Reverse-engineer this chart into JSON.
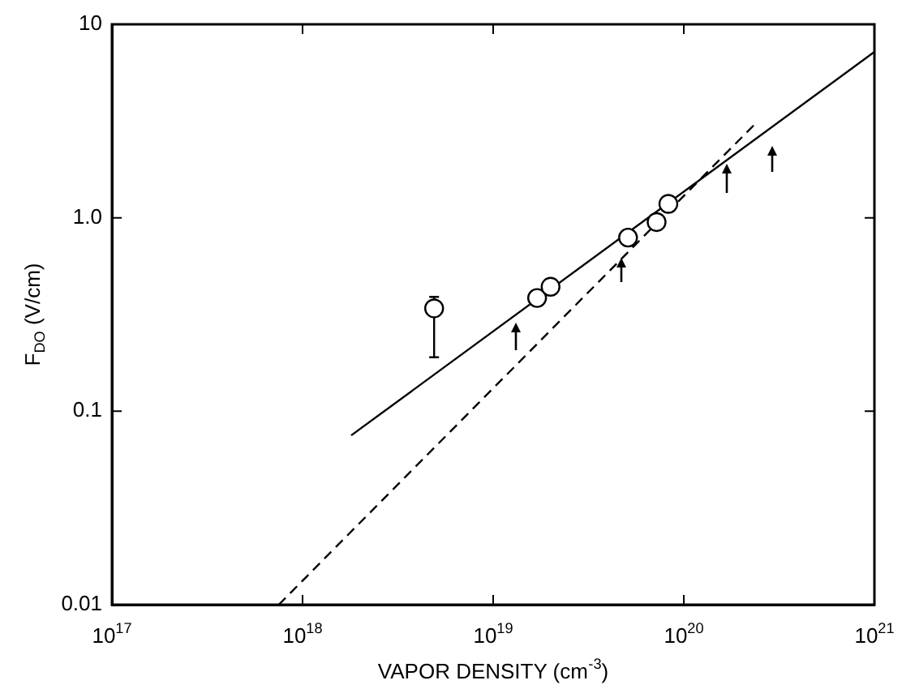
{
  "chart_data": {
    "type": "scatter",
    "xlabel": "VAPOR DENSITY (cm$^{-3}$)",
    "ylabel": "F$_{DO}$ (V/cm)",
    "log": "xy",
    "grid": false,
    "legend": false,
    "marker": "circle",
    "xlim": [
      1e+17,
      1e+21
    ],
    "ylim": [
      0.01,
      10
    ],
    "xticks": [
      {
        "value": 1e+17,
        "label": "10$^{17}$"
      },
      {
        "value": 1e+18,
        "label": "10$^{18}$"
      },
      {
        "value": 1e+19,
        "label": "10$^{19}$"
      },
      {
        "value": 1e+20,
        "label": "10$^{20}$"
      },
      {
        "value": 1e+21,
        "label": "10$^{21}$"
      }
    ],
    "yticks": [
      0.01,
      0.1,
      {
        "value": 1,
        "label": "1.0"
      },
      10
    ],
    "series": [
      {
        "color": "#000000",
        "x": [
          4.9e+18,
          1.7e+19,
          2e+19,
          5.1e+19,
          7.2e+19,
          8.3e+19
        ],
        "values": [
          0.34,
          0.385,
          0.44,
          0.79,
          0.95,
          1.18
        ],
        "errors": [
          [
            0.19,
            0.39
          ],
          null,
          null,
          null,
          null,
          null
        ]
      },
      {
        "type": "line",
        "color": "#000000",
        "marker": "none",
        "line_style": "solid",
        "x": [
          1.8e+18,
          1e+21
        ],
        "values": [
          0.075,
          7.2
        ]
      },
      {
        "type": "line",
        "color": "#000000",
        "marker": "none",
        "line_style": "dashed",
        "x": [
          7.5e+17,
          2.4e+20
        ],
        "values": [
          0.01,
          3.1
        ]
      }
    ]
  }
}
